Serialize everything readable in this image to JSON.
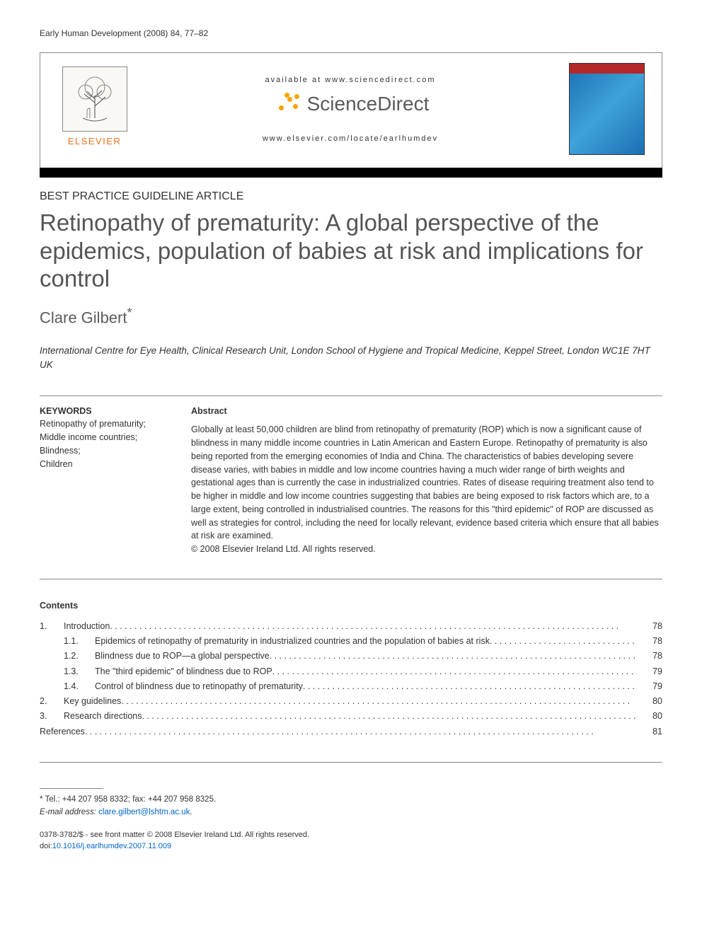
{
  "running_head": "Early Human Development (2008) 84, 77–82",
  "banner": {
    "available_at": "available at www.sciencedirect.com",
    "sd_name": "ScienceDirect",
    "journal_url": "www.elsevier.com/locate/earlhumdev",
    "publisher": "ELSEVIER"
  },
  "article": {
    "type": "BEST PRACTICE GUIDELINE ARTICLE",
    "title": "Retinopathy of prematurity: A global perspective of the epidemics, population of babies at risk and implications for control",
    "author": "Clare Gilbert",
    "author_marker": "*",
    "affiliation": "International Centre for Eye Health, Clinical Research Unit, London School of Hygiene and Tropical Medicine, Keppel Street, London WC1E 7HT UK"
  },
  "keywords": {
    "heading": "KEYWORDS",
    "items": [
      "Retinopathy of prematurity;",
      "Middle income countries;",
      "Blindness;",
      "Children"
    ]
  },
  "abstract": {
    "heading": "Abstract",
    "text": "Globally at least 50,000 children are blind from retinopathy of prematurity (ROP) which is now a significant cause of blindness in many middle income countries in Latin American and Eastern Europe. Retinopathy of prematurity is also being reported from the emerging economies of India and China. The characteristics of babies developing severe disease varies, with babies in middle and low income countries having a much wider range of birth weights and gestational ages than is currently the case in industrialized countries. Rates of disease requiring treatment also tend to be higher in middle and low income countries suggesting that babies are being exposed to risk factors which are, to a large extent, being controlled in industrialised countries. The reasons for this \"third epidemic\" of ROP are discussed as well as strategies for control, including the need for locally relevant, evidence based criteria which ensure that all babies at risk are examined.",
    "copyright": "© 2008 Elsevier Ireland Ltd. All rights reserved."
  },
  "contents": {
    "heading": "Contents",
    "entries": [
      {
        "num": "1.",
        "label": "Introduction",
        "page": "78",
        "level": 0
      },
      {
        "num": "1.1.",
        "label": "Epidemics of retinopathy of prematurity in industrialized countries and the population of babies at risk",
        "page": "78",
        "level": 1
      },
      {
        "num": "1.2.",
        "label": "Blindness due to ROP—a global perspective",
        "page": "78",
        "level": 1
      },
      {
        "num": "1.3.",
        "label": "The \"third epidemic\" of blindness due to ROP",
        "page": "79",
        "level": 1
      },
      {
        "num": "1.4.",
        "label": "Control of blindness due to retinopathy of prematurity",
        "page": "79",
        "level": 1
      },
      {
        "num": "2.",
        "label": "Key guidelines",
        "page": "80",
        "level": 0
      },
      {
        "num": "3.",
        "label": "Research directions",
        "page": "80",
        "level": 0
      },
      {
        "num": "",
        "label": "References",
        "page": "81",
        "level": 0
      }
    ]
  },
  "footnote": {
    "contact": "* Tel.: +44 207 958 8332; fax: +44 207 958 8325.",
    "email_label": "E-mail address:",
    "email": "clare.gilbert@lshtm.ac.uk"
  },
  "footer": {
    "line1": "0378-3782/$ - see front matter © 2008 Elsevier Ireland Ltd. All rights reserved.",
    "doi_prefix": "doi:",
    "doi": "10.1016/j.earlhumdev.2007.11.009"
  },
  "style": {
    "title_fontsize": 33,
    "title_color": "#555555",
    "body_fontsize": 12.5,
    "link_color": "#0066cc",
    "publisher_color": "#e9711c",
    "sd_color": "#5a5a58",
    "background": "#ffffff"
  }
}
